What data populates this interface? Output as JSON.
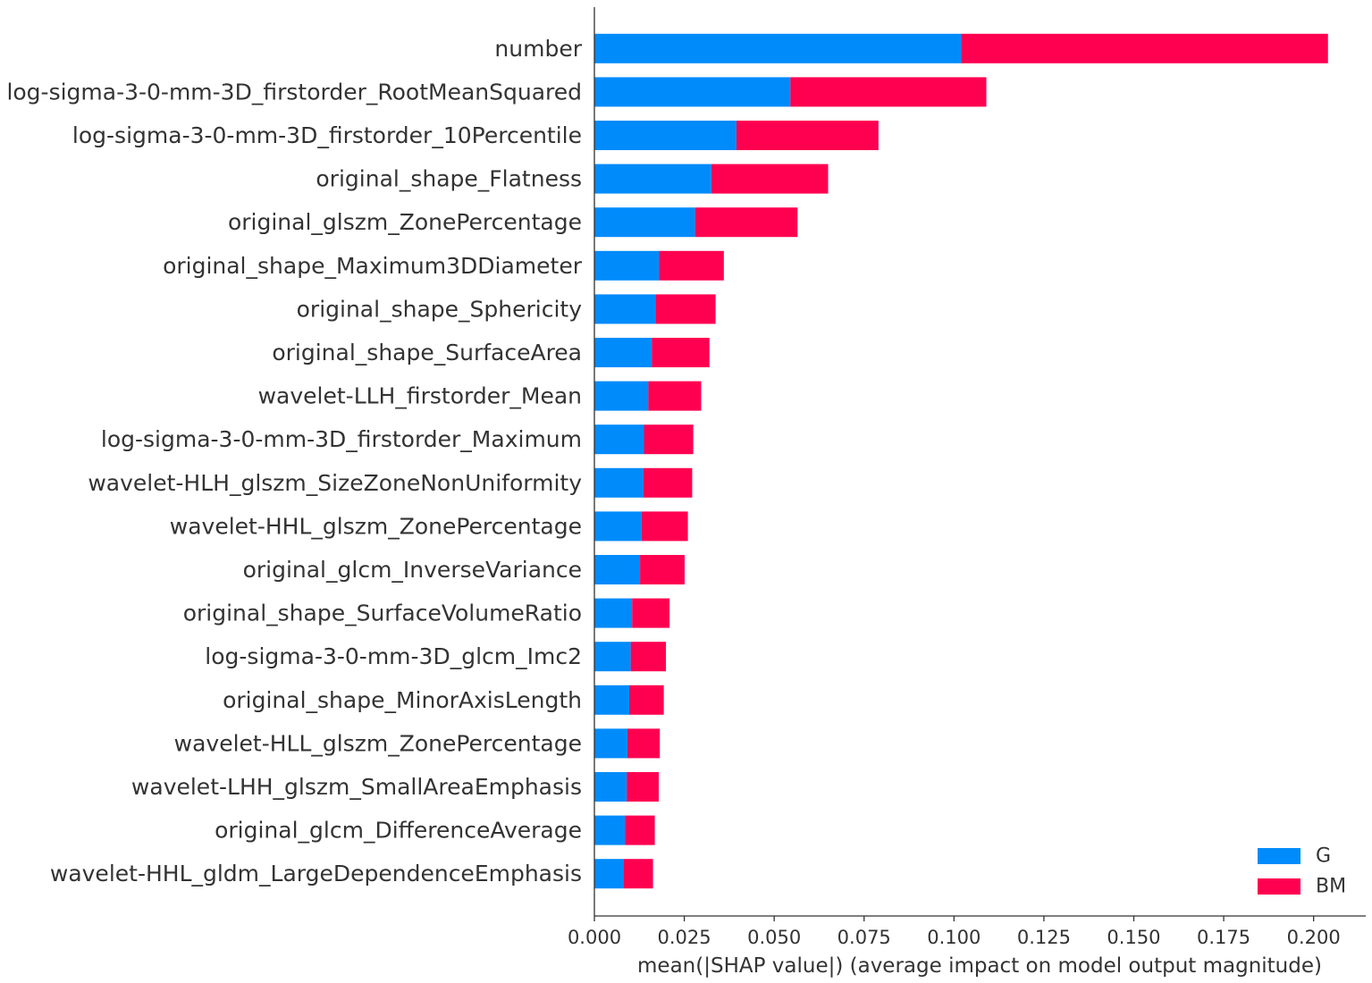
{
  "chart_data": {
    "type": "bar",
    "orientation": "horizontal",
    "stacked": true,
    "categories": [
      "number",
      "log-sigma-3-0-mm-3D_firstorder_RootMeanSquared",
      "log-sigma-3-0-mm-3D_firstorder_10Percentile",
      "original_shape_Flatness",
      "original_glszm_ZonePercentage",
      "original_shape_Maximum3DDiameter",
      "original_shape_Sphericity",
      "original_shape_SurfaceArea",
      "wavelet-LLH_firstorder_Mean",
      "log-sigma-3-0-mm-3D_firstorder_Maximum",
      "wavelet-HLH_glszm_SizeZoneNonUniformity",
      "wavelet-HHL_glszm_ZonePercentage",
      "original_glcm_InverseVariance",
      "original_shape_SurfaceVolumeRatio",
      "log-sigma-3-0-mm-3D_glcm_Imc2",
      "original_shape_MinorAxisLength",
      "wavelet-HLL_glszm_ZonePercentage",
      "wavelet-LHH_glszm_SmallAreaEmphasis",
      "original_glcm_DifferenceAverage",
      "wavelet-HHL_gldm_LargeDependenceEmphasis"
    ],
    "series": [
      {
        "name": "G",
        "color": "#008bfb",
        "values": [
          0.102,
          0.0545,
          0.0395,
          0.0325,
          0.028,
          0.018,
          0.017,
          0.016,
          0.015,
          0.0138,
          0.0136,
          0.0131,
          0.0127,
          0.0105,
          0.0101,
          0.0097,
          0.0092,
          0.009,
          0.0085,
          0.0082
        ]
      },
      {
        "name": "BM",
        "color": "#ff0051",
        "values": [
          0.102,
          0.0545,
          0.0395,
          0.0325,
          0.0285,
          0.018,
          0.0167,
          0.016,
          0.0147,
          0.0137,
          0.0136,
          0.0129,
          0.0124,
          0.0104,
          0.0098,
          0.0096,
          0.009,
          0.0089,
          0.0083,
          0.0081
        ]
      }
    ],
    "xlim": [
      0,
      0.2145
    ],
    "xticks": [
      "0.000",
      "0.025",
      "0.050",
      "0.075",
      "0.100",
      "0.125",
      "0.150",
      "0.175",
      "0.200"
    ],
    "xlabel": "mean(|SHAP value|) (average impact on model output magnitude)",
    "ylabel": "",
    "title": "",
    "grid": false,
    "legend": {
      "position": "bottom-right",
      "entries": [
        "G",
        "BM"
      ]
    }
  }
}
